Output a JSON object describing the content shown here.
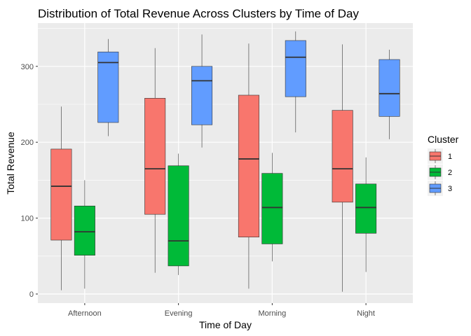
{
  "chart_data": {
    "type": "boxplot",
    "title": "Distribution of Total Revenue Across Clusters by Time of Day",
    "xlabel": "Time of Day",
    "ylabel": "Total Revenue",
    "categories": [
      "Afternoon",
      "Evening",
      "Morning",
      "Night"
    ],
    "ylim": [
      -12,
      357
    ],
    "yticks": [
      0,
      100,
      200,
      300
    ],
    "grid": true,
    "legend": {
      "title": "Cluster",
      "position": "right"
    },
    "series": [
      {
        "name": "1",
        "color": "#F8766D",
        "boxes": [
          {
            "min": 5,
            "q1": 71,
            "median": 142,
            "q3": 191,
            "max": 247
          },
          {
            "min": 28,
            "q1": 105,
            "median": 165,
            "q3": 258,
            "max": 324
          },
          {
            "min": 7,
            "q1": 75,
            "median": 178,
            "q3": 262,
            "max": 330
          },
          {
            "min": 3,
            "q1": 121,
            "median": 165,
            "q3": 242,
            "max": 329
          }
        ]
      },
      {
        "name": "2",
        "color": "#00BA38",
        "boxes": [
          {
            "min": 7,
            "q1": 51,
            "median": 82,
            "q3": 116,
            "max": 150
          },
          {
            "min": 25,
            "q1": 37,
            "median": 70,
            "q3": 169,
            "max": 185
          },
          {
            "min": 43,
            "q1": 66,
            "median": 114,
            "q3": 159,
            "max": 186
          },
          {
            "min": 29,
            "q1": 80,
            "median": 114,
            "q3": 145,
            "max": 180
          }
        ]
      },
      {
        "name": "3",
        "color": "#619CFF",
        "boxes": [
          {
            "min": 208,
            "q1": 226,
            "median": 305,
            "q3": 319,
            "max": 336
          },
          {
            "min": 193,
            "q1": 223,
            "median": 281,
            "q3": 300,
            "max": 342
          },
          {
            "min": 213,
            "q1": 260,
            "median": 312,
            "q3": 334,
            "max": 346
          },
          {
            "min": 204,
            "q1": 234,
            "median": 264,
            "q3": 309,
            "max": 322
          }
        ]
      }
    ]
  }
}
